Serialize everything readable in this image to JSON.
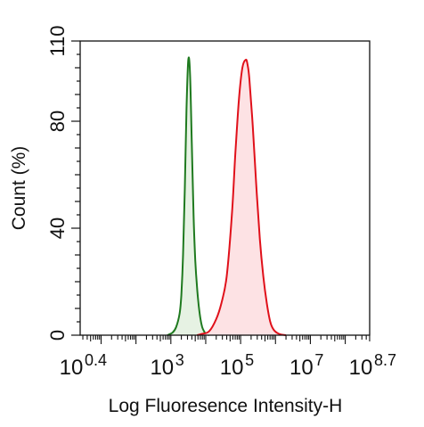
{
  "chart_data": {
    "type": "area",
    "title": "",
    "xlabel": "Log Fluoresence Intensity-H",
    "ylabel": "Count  (%)",
    "x_scale": "log10",
    "xlim": [
      0.4,
      8.7
    ],
    "ylim": [
      0,
      110
    ],
    "y_ticks": [
      0,
      40,
      80,
      110
    ],
    "x_ticks": [
      {
        "base": "10",
        "exp": "0.4",
        "value": 0.4
      },
      {
        "base": "10",
        "exp": "3",
        "value": 3
      },
      {
        "base": "10",
        "exp": "5",
        "value": 5
      },
      {
        "base": "10",
        "exp": "7",
        "value": 7
      },
      {
        "base": "10",
        "exp": "8.7",
        "value": 8.7
      }
    ],
    "grid": false,
    "legend": "none",
    "series": [
      {
        "color": "#1f7a1f",
        "fill": "#e6f2e3",
        "x": [
          2.9,
          3.05,
          3.15,
          3.25,
          3.3,
          3.35,
          3.4,
          3.45,
          3.5,
          3.55,
          3.6,
          3.65,
          3.7,
          3.75,
          3.8,
          3.85,
          3.9,
          3.95,
          4.0,
          4.05,
          4.1
        ],
        "y": [
          0,
          1,
          3,
          8,
          15,
          30,
          55,
          85,
          103,
          98,
          72,
          45,
          28,
          18,
          11,
          6,
          3,
          1.5,
          0.5,
          0.2,
          0
        ]
      },
      {
        "color": "#e0101a",
        "fill": "#fde2e4",
        "x": [
          3.75,
          3.9,
          4.1,
          4.3,
          4.45,
          4.6,
          4.75,
          4.85,
          4.95,
          5.05,
          5.15,
          5.2,
          5.25,
          5.35,
          5.45,
          5.55,
          5.65,
          5.75,
          5.85,
          5.95,
          6.1,
          6.3
        ],
        "y": [
          0,
          0.5,
          1.5,
          6,
          12,
          22,
          45,
          68,
          88,
          100,
          103,
          101,
          96,
          78,
          56,
          36,
          22,
          12,
          5,
          2,
          0.5,
          0
        ]
      }
    ]
  }
}
